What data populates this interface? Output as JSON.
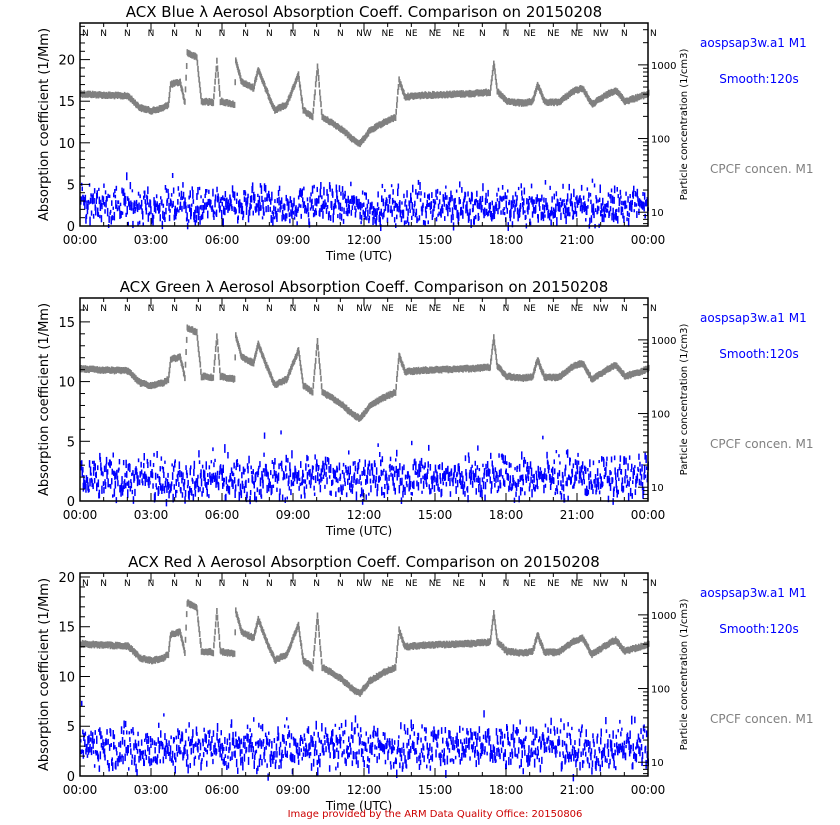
{
  "colors": {
    "absorption": "#0000ff",
    "concentration": "#808080",
    "footer": "#cc0000",
    "axis": "#000000"
  },
  "legend": {
    "absorption_line1": "aospsap3w.a1 M1",
    "absorption_line2": "Smooth:120s",
    "concentration": "CPCF concen. M1"
  },
  "footer": "Image provided by the ARM Data Quality Office: 20150806",
  "chart_data": [
    {
      "type": "scatter",
      "title": "ACX Blue λ Aerosol Absorption Coeff. Comparison on 20150208",
      "xlabel": "Time (UTC)",
      "ylabel": "Absorption coefficient (1/Mm)",
      "y2label": "Particle concentration (1/cm3)",
      "xlim": [
        0,
        24
      ],
      "ylim": [
        0,
        24.4
      ],
      "yticks": [
        "0",
        "5",
        "10",
        "15",
        "20"
      ],
      "y2lim": [
        6.5,
        3700
      ],
      "y2scale": "log",
      "y2ticks": [
        "10",
        "100",
        "1000"
      ],
      "xticks": [
        "00:00",
        "03:00",
        "06:00",
        "09:00",
        "12:00",
        "15:00",
        "18:00",
        "21:00",
        "00:00"
      ],
      "wind_direction": [
        "N",
        "N",
        "N",
        "N",
        "N",
        "N",
        "N",
        "N",
        "N",
        "N",
        "N",
        "N",
        "NW",
        "NE",
        "NE",
        "NE",
        "NE",
        "N",
        "N",
        "NE",
        "NE",
        "NE",
        "NW",
        "N",
        "N"
      ],
      "absorption_hourly_mean": [
        2.8,
        2.6,
        2.5,
        2.3,
        2.4,
        2.5,
        2.4,
        2.6,
        2.5,
        2.6,
        2.8,
        2.5,
        2.3,
        2.4,
        2.5,
        2.4,
        2.6,
        2.5,
        2.4,
        2.5,
        2.3,
        2.4,
        2.5,
        2.6
      ],
      "absorption_spread": 1.6
    },
    {
      "type": "scatter",
      "title": "ACX Green λ Aerosol Absorption Coeff. Comparison on 20150208",
      "xlabel": "Time (UTC)",
      "ylabel": "Absorption coefficient (1/Mm)",
      "y2label": "Particle concentration (1/cm3)",
      "xlim": [
        0,
        24
      ],
      "ylim": [
        0,
        17
      ],
      "yticks": [
        "0",
        "5",
        "10",
        "15"
      ],
      "y2lim": [
        6.5,
        3700
      ],
      "y2scale": "log",
      "y2ticks": [
        "10",
        "100",
        "1000"
      ],
      "xticks": [
        "00:00",
        "03:00",
        "06:00",
        "09:00",
        "12:00",
        "15:00",
        "18:00",
        "21:00",
        "00:00"
      ],
      "wind_direction": [
        "N",
        "N",
        "N",
        "N",
        "N",
        "N",
        "N",
        "N",
        "N",
        "N",
        "N",
        "N",
        "NW",
        "NE",
        "NE",
        "NE",
        "NE",
        "N",
        "N",
        "NE",
        "NE",
        "NE",
        "NW",
        "N",
        "N"
      ],
      "absorption_hourly_mean": [
        2.1,
        2.0,
        1.9,
        1.8,
        2.0,
        2.1,
        1.9,
        2.0,
        2.0,
        2.1,
        2.2,
        2.1,
        2.0,
        2.1,
        2.2,
        2.0,
        2.1,
        2.1,
        2.0,
        2.1,
        1.9,
        2.0,
        2.0,
        2.1
      ],
      "absorption_spread": 1.3
    },
    {
      "type": "scatter",
      "title": "ACX Red λ Aerosol Absorption Coeff. Comparison on 20150208",
      "xlabel": "Time (UTC)",
      "ylabel": "Absorption coefficient (1/Mm)",
      "y2label": "Particle concentration (1/cm3)",
      "xlim": [
        0,
        24
      ],
      "ylim": [
        0,
        20.4
      ],
      "yticks": [
        "0",
        "5",
        "10",
        "15",
        "20"
      ],
      "y2lim": [
        6.5,
        3700
      ],
      "y2scale": "log",
      "y2ticks": [
        "10",
        "100",
        "1000"
      ],
      "xticks": [
        "00:00",
        "03:00",
        "06:00",
        "09:00",
        "12:00",
        "15:00",
        "18:00",
        "21:00",
        "00:00"
      ],
      "wind_direction": [
        "N",
        "N",
        "N",
        "N",
        "N",
        "N",
        "N",
        "N",
        "N",
        "N",
        "N",
        "N",
        "NW",
        "NE",
        "NE",
        "NE",
        "NE",
        "N",
        "N",
        "NE",
        "NE",
        "NE",
        "NW",
        "N",
        "N"
      ],
      "absorption_hourly_mean": [
        3.2,
        3.0,
        2.9,
        2.8,
        3.0,
        3.1,
        2.9,
        3.0,
        3.0,
        3.1,
        3.2,
        3.0,
        2.9,
        3.1,
        3.2,
        3.0,
        3.1,
        3.1,
        3.0,
        3.1,
        2.9,
        3.0,
        3.0,
        3.1
      ],
      "absorption_spread": 1.7
    }
  ],
  "concentration_series": [
    [
      0,
      418
    ],
    [
      1,
      400
    ],
    [
      2,
      390
    ],
    [
      2.5,
      270
    ],
    [
      3,
      245
    ],
    [
      3.5,
      270
    ],
    [
      3.7,
      300
    ],
    [
      3.8,
      560
    ],
    [
      4.2,
      600
    ],
    [
      4.4,
      320
    ],
    [
      4.5,
      1510
    ],
    [
      4.9,
      1300
    ],
    [
      5.1,
      330
    ],
    [
      5.6,
      320
    ],
    [
      5.75,
      1160
    ],
    [
      5.9,
      330
    ],
    [
      6.5,
      300
    ],
    [
      6.55,
      1160
    ],
    [
      6.8,
      600
    ],
    [
      7.0,
      560
    ],
    [
      7.3,
      500
    ],
    [
      7.5,
      900
    ],
    [
      7.8,
      500
    ],
    [
      8.2,
      250
    ],
    [
      8.7,
      300
    ],
    [
      9.2,
      750
    ],
    [
      9.4,
      250
    ],
    [
      9.8,
      200
    ],
    [
      10.0,
      1000
    ],
    [
      10.2,
      200
    ],
    [
      10.6,
      170
    ],
    [
      11.0,
      140
    ],
    [
      11.5,
      100
    ],
    [
      11.8,
      88
    ],
    [
      12.2,
      130
    ],
    [
      12.8,
      170
    ],
    [
      13.3,
      200
    ],
    [
      13.45,
      640
    ],
    [
      13.7,
      380
    ],
    [
      14.5,
      400
    ],
    [
      15.5,
      410
    ],
    [
      16.5,
      420
    ],
    [
      17.3,
      440
    ],
    [
      17.45,
      1100
    ],
    [
      17.6,
      450
    ],
    [
      18,
      330
    ],
    [
      18.7,
      310
    ],
    [
      19.1,
      330
    ],
    [
      19.3,
      560
    ],
    [
      19.6,
      320
    ],
    [
      20.2,
      320
    ],
    [
      20.8,
      450
    ],
    [
      21.2,
      500
    ],
    [
      21.6,
      300
    ],
    [
      22.2,
      400
    ],
    [
      22.6,
      470
    ],
    [
      23.0,
      330
    ],
    [
      23.5,
      370
    ],
    [
      24,
      420
    ]
  ]
}
